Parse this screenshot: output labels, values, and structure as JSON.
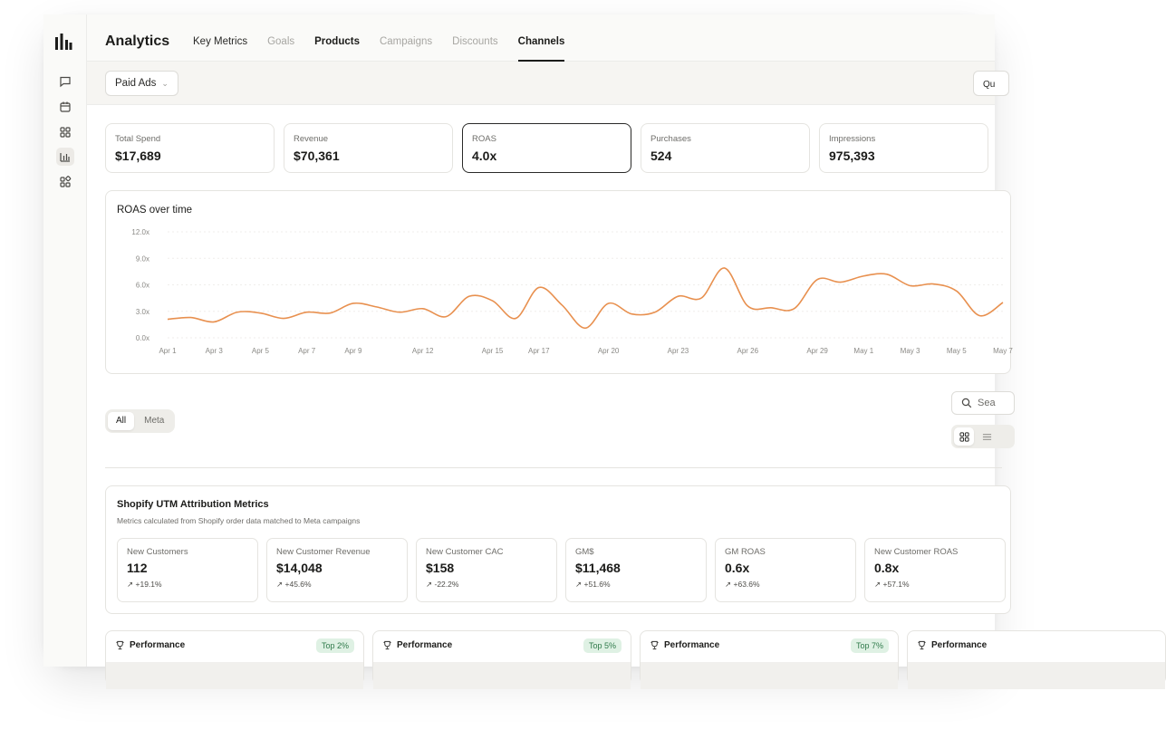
{
  "app": {
    "title": "Analytics"
  },
  "tabs": [
    {
      "label": "Key Metrics"
    },
    {
      "label": "Goals"
    },
    {
      "label": "Products"
    },
    {
      "label": "Campaigns"
    },
    {
      "label": "Discounts"
    },
    {
      "label": "Channels"
    }
  ],
  "filter": {
    "channel": "Paid Ads",
    "right_button": "Qu"
  },
  "kpis": [
    {
      "label": "Total Spend",
      "value": "$17,689"
    },
    {
      "label": "Revenue",
      "value": "$70,361"
    },
    {
      "label": "ROAS",
      "value": "4.0x"
    },
    {
      "label": "Purchases",
      "value": "524"
    },
    {
      "label": "Impressions",
      "value": "975,393"
    }
  ],
  "chart_data": {
    "type": "line",
    "title": "ROAS over time",
    "xlabel": "",
    "ylabel": "",
    "ylim": [
      0,
      12
    ],
    "y_ticks": [
      "12.0x",
      "9.0x",
      "6.0x",
      "3.0x",
      "0.0x"
    ],
    "x_tick_labels": [
      "Apr 1",
      "Apr 3",
      "Apr 5",
      "Apr 7",
      "Apr 9",
      "Apr 12",
      "Apr 15",
      "Apr 17",
      "Apr 20",
      "Apr 23",
      "Apr 26",
      "Apr 29",
      "May 1",
      "May 3",
      "May 5",
      "May 7"
    ],
    "grid": true,
    "color": "#e8904f",
    "x": [
      "Apr 1",
      "Apr 2",
      "Apr 3",
      "Apr 4",
      "Apr 5",
      "Apr 6",
      "Apr 7",
      "Apr 8",
      "Apr 9",
      "Apr 10",
      "Apr 11",
      "Apr 12",
      "Apr 13",
      "Apr 14",
      "Apr 15",
      "Apr 16",
      "Apr 17",
      "Apr 18",
      "Apr 19",
      "Apr 20",
      "Apr 21",
      "Apr 22",
      "Apr 23",
      "Apr 24",
      "Apr 25",
      "Apr 26",
      "Apr 27",
      "Apr 28",
      "Apr 29",
      "Apr 30",
      "May 1",
      "May 2",
      "May 3",
      "May 4",
      "May 5",
      "May 6",
      "May 7"
    ],
    "values": [
      2.1,
      2.3,
      1.8,
      2.9,
      2.8,
      2.2,
      2.9,
      2.8,
      3.9,
      3.5,
      2.9,
      3.3,
      2.4,
      4.7,
      4.2,
      2.2,
      5.7,
      3.7,
      1.1,
      3.9,
      2.7,
      2.9,
      4.7,
      4.5,
      7.9,
      3.6,
      3.4,
      3.3,
      6.6,
      6.3,
      7.0,
      7.2,
      5.9,
      6.1,
      5.3,
      2.5,
      4.0
    ]
  },
  "segment": {
    "items": [
      "All",
      "Meta"
    ],
    "active": "All"
  },
  "search": {
    "placeholder": "Sea"
  },
  "utm": {
    "title": "Shopify UTM Attribution Metrics",
    "subtitle": "Metrics calculated from Shopify order data matched to Meta campaigns",
    "cards": [
      {
        "label": "New Customers",
        "value": "112",
        "change": "+19.1%"
      },
      {
        "label": "New Customer Revenue",
        "value": "$14,048",
        "change": "+45.6%"
      },
      {
        "label": "New Customer CAC",
        "value": "$158",
        "change": "-22.2%"
      },
      {
        "label": "GM$",
        "value": "$11,468",
        "change": "+51.6%"
      },
      {
        "label": "GM ROAS",
        "value": "0.6x",
        "change": "+63.6%"
      },
      {
        "label": "New Customer ROAS",
        "value": "0.8x",
        "change": "+57.1%"
      }
    ]
  },
  "performance": [
    {
      "label": "Performance",
      "badge": "Top 2%"
    },
    {
      "label": "Performance",
      "badge": "Top 5%"
    },
    {
      "label": "Performance",
      "badge": "Top 7%"
    },
    {
      "label": "Performance",
      "badge": ""
    }
  ]
}
